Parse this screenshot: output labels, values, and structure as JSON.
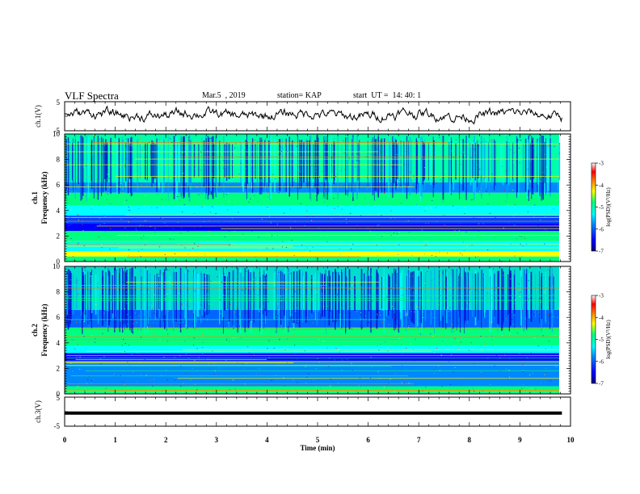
{
  "header": {
    "title": "VLF Spectra",
    "date": "Mar.5  , 2019",
    "station": "station= KAP",
    "start": "start  UT =  14: 40: 1"
  },
  "colors": {
    "scale": [
      "#000080",
      "#0000ff",
      "#0088ff",
      "#00ffff",
      "#00ff80",
      "#ffff00",
      "#ff8000",
      "#ff0000",
      "#ffffff"
    ]
  },
  "chart_data": [
    {
      "type": "line",
      "panel": "ch1-waveform",
      "ylabel": "ch.1(V)",
      "yticks": [
        "5",
        "-5"
      ],
      "ylim": [
        -5,
        5
      ],
      "xlim": [
        0,
        10
      ]
    },
    {
      "type": "heatmap",
      "panel": "ch1-spectrogram",
      "ylabel": "Frequency  (kHz)",
      "ylabel_top": "ch.1",
      "yticks": [
        "0",
        "2",
        "4",
        "6",
        "8",
        "10"
      ],
      "ylim": [
        0,
        10
      ],
      "xlim": [
        0,
        9.83
      ],
      "colorbar": {
        "label": "log(PSD)(V²/Hz)",
        "ticks": [
          "-3",
          "-4",
          "-5",
          "-6",
          "-7"
        ],
        "range": [
          -7,
          -3
        ]
      }
    },
    {
      "type": "heatmap",
      "panel": "ch2-spectrogram",
      "ylabel": "Frequency  (kHz)",
      "ylabel_top": "ch.2",
      "yticks": [
        "0",
        "2",
        "4",
        "6",
        "8",
        "10"
      ],
      "ylim": [
        0,
        10
      ],
      "xlim": [
        0,
        9.83
      ],
      "colorbar": {
        "label": "log(PSD)(V²/Hz)",
        "ticks": [
          "-3",
          "-4",
          "-5",
          "-6",
          "-7"
        ],
        "range": [
          -7,
          -3
        ]
      }
    },
    {
      "type": "line",
      "panel": "ch3-waveform",
      "ylabel": "ch.3(V)",
      "yticks": [
        "5",
        "-5"
      ],
      "ylim": [
        -5,
        5
      ],
      "xlim": [
        0,
        10
      ],
      "x": [
        0,
        9.83
      ],
      "y": [
        -0.5,
        -0.5
      ]
    }
  ],
  "xaxis": {
    "label": "Time  (min)",
    "ticks": [
      "0",
      "1",
      "2",
      "3",
      "4",
      "5",
      "6",
      "7",
      "8",
      "9",
      "10"
    ]
  }
}
